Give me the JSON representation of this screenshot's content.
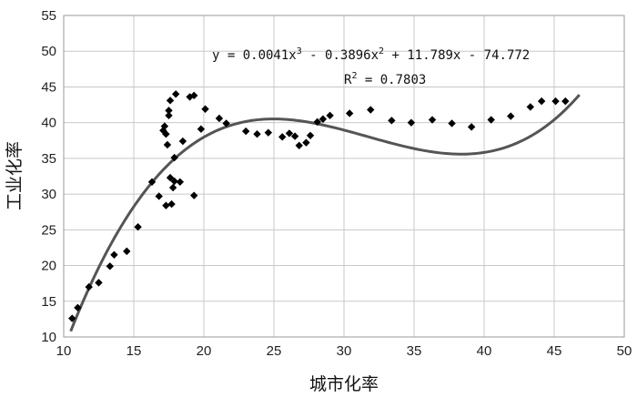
{
  "chart_data": {
    "type": "scatter",
    "xlabel": "城市化率",
    "ylabel": "工业化率",
    "xlim": [
      10,
      50
    ],
    "ylim": [
      10,
      55
    ],
    "xticks": [
      10,
      15,
      20,
      25,
      30,
      35,
      40,
      45,
      50
    ],
    "yticks": [
      10,
      15,
      20,
      25,
      30,
      35,
      40,
      45,
      50,
      55
    ],
    "grid": true,
    "marker": "diamond",
    "colors": {
      "points": "#000000",
      "trendline": "#555555",
      "grid": "#c8c8c8"
    },
    "points": [
      [
        10.6,
        12.6
      ],
      [
        11.0,
        14.1
      ],
      [
        11.8,
        17.0
      ],
      [
        12.5,
        17.6
      ],
      [
        13.3,
        19.9
      ],
      [
        13.6,
        21.5
      ],
      [
        14.5,
        22.0
      ],
      [
        15.3,
        25.4
      ],
      [
        16.3,
        31.7
      ],
      [
        16.8,
        29.7
      ],
      [
        17.1,
        38.9
      ],
      [
        17.2,
        39.5
      ],
      [
        17.3,
        38.4
      ],
      [
        17.3,
        28.4
      ],
      [
        17.4,
        36.9
      ],
      [
        17.5,
        41.0
      ],
      [
        17.5,
        41.7
      ],
      [
        17.6,
        43.1
      ],
      [
        17.6,
        32.3
      ],
      [
        17.7,
        28.6
      ],
      [
        17.8,
        30.9
      ],
      [
        17.9,
        31.8
      ],
      [
        17.9,
        35.1
      ],
      [
        18.0,
        44.0
      ],
      [
        18.3,
        31.7
      ],
      [
        18.5,
        37.4
      ],
      [
        19.0,
        43.6
      ],
      [
        19.3,
        43.8
      ],
      [
        19.3,
        29.8
      ],
      [
        19.8,
        39.1
      ],
      [
        20.1,
        41.9
      ],
      [
        21.1,
        40.6
      ],
      [
        21.6,
        39.9
      ],
      [
        23.0,
        38.8
      ],
      [
        23.8,
        38.4
      ],
      [
        24.6,
        38.6
      ],
      [
        25.6,
        38.0
      ],
      [
        26.1,
        38.5
      ],
      [
        26.5,
        38.1
      ],
      [
        26.8,
        36.8
      ],
      [
        27.3,
        37.2
      ],
      [
        27.6,
        38.2
      ],
      [
        28.1,
        40.1
      ],
      [
        28.5,
        40.5
      ],
      [
        29.0,
        41.0
      ],
      [
        30.4,
        41.3
      ],
      [
        31.9,
        41.8
      ],
      [
        33.4,
        40.3
      ],
      [
        34.8,
        40.0
      ],
      [
        36.3,
        40.4
      ],
      [
        37.7,
        39.9
      ],
      [
        39.1,
        39.4
      ],
      [
        40.5,
        40.4
      ],
      [
        41.9,
        40.9
      ],
      [
        43.3,
        42.2
      ],
      [
        44.1,
        43.0
      ],
      [
        45.1,
        43.0
      ],
      [
        45.8,
        43.0
      ]
    ],
    "trendline": {
      "type": "polynomial-3",
      "coefficients": [
        0.0041,
        -0.3896,
        11.789,
        -74.772
      ],
      "x_range": [
        10.5,
        46.8
      ],
      "equation_parts": [
        "y = 0.0041x",
        "3",
        " - 0.3896x",
        "2",
        " + 11.789x - 74.772"
      ],
      "r2_parts": [
        "R",
        "2",
        " = 0.7803"
      ]
    }
  }
}
